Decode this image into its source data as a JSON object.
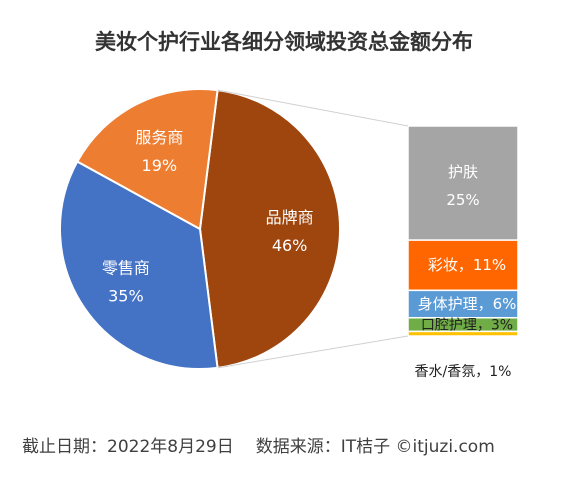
{
  "chart_data": {
    "type": "pie",
    "title": "美妆个护行业各细分领域投资总金额分布",
    "pie": {
      "slices": [
        {
          "label": "品牌商",
          "value": 46,
          "value_text": "46%",
          "color": "#9e460e"
        },
        {
          "label": "零售商",
          "value": 35,
          "value_text": "35%",
          "color": "#4472c4"
        },
        {
          "label": "服务商",
          "value": 19,
          "value_text": "19%",
          "color": "#ed7d31"
        }
      ]
    },
    "breakdown": {
      "of": "品牌商",
      "segments": [
        {
          "label": "护肤",
          "value": 25,
          "value_text": "25%",
          "text": "",
          "color": "#a5a5a5"
        },
        {
          "label": "彩妆",
          "value": 11,
          "value_text": "",
          "text": "彩妆，11%",
          "color": "#ff6600"
        },
        {
          "label": "身体护理",
          "value": 6,
          "value_text": "",
          "text": "身体护理，6%",
          "color": "#5b9bd5"
        },
        {
          "label": "口腔护理",
          "value": 3,
          "value_text": "",
          "text": "口腔护理，3%",
          "color": "#70ad47"
        },
        {
          "label": "香水/香氛",
          "value": 1,
          "value_text": "",
          "text": "香水/香氛，1%",
          "color": "#ffc000"
        }
      ]
    }
  },
  "footer": {
    "date": "截止日期：2022年8月29日",
    "source": "数据来源：IT桔子 ©itjuzi.com"
  }
}
